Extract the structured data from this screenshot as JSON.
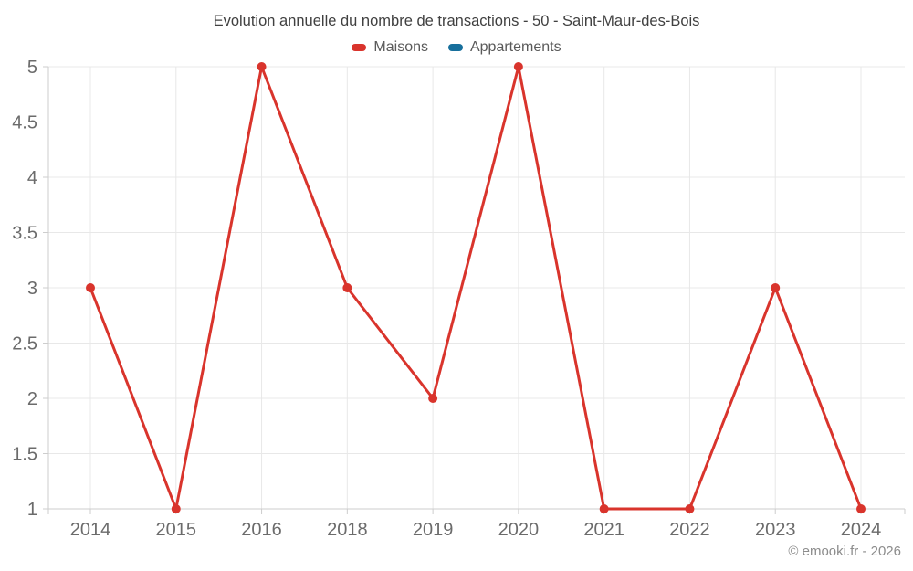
{
  "title": "Evolution annuelle du nombre de transactions - 50 - Saint-Maur-des-Bois",
  "footer_credit": "© emooki.fr - 2026",
  "chart_data": {
    "type": "line",
    "title": "Evolution annuelle du nombre de transactions - 50 - Saint-Maur-des-Bois",
    "categories": [
      "2014",
      "2015",
      "2016",
      "2018",
      "2019",
      "2020",
      "2021",
      "2022",
      "2023",
      "2024"
    ],
    "series": [
      {
        "name": "Maisons",
        "color": "#d9342c",
        "values": [
          3,
          1,
          5,
          3,
          2,
          5,
          1,
          1,
          3,
          1
        ]
      },
      {
        "name": "Appartements",
        "color": "#176f9c",
        "values": []
      }
    ],
    "xlabel": "",
    "ylabel": "",
    "ylim": [
      1,
      5
    ],
    "ytick_step": 0.5,
    "ytick_labels": [
      "1",
      "1.5",
      "2",
      "2.5",
      "3",
      "3.5",
      "4",
      "4.5",
      "5"
    ],
    "grid": true,
    "legend_position": "top",
    "marker": "circle"
  }
}
